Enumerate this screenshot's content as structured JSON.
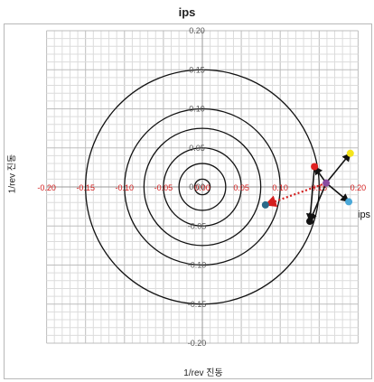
{
  "chart_data": {
    "type": "scatter",
    "title": "ips",
    "xlabel": "1/rev 진동",
    "ylabel": "1/rev 진동",
    "right_label": "ips",
    "xlim": [
      -0.2,
      0.2
    ],
    "ylim": [
      -0.2,
      0.2
    ],
    "grid": true,
    "x_ticks": [
      "-0.20",
      "-0.15",
      "-0.10",
      "-0.05",
      "0.00",
      "0.05",
      "0.10",
      "0.15",
      "0.20"
    ],
    "y_ticks": [
      "0.20",
      "0.15",
      "0.10",
      "0.05",
      "0.00",
      "-0.05",
      "-0.10",
      "-0.15",
      "-0.20"
    ],
    "x_tick_color": "#d42020",
    "circles": [
      0.01,
      0.03,
      0.05,
      0.075,
      0.1,
      0.15
    ],
    "points": [
      {
        "x": 0.144,
        "y": 0.026,
        "color": "#e02020"
      },
      {
        "x": 0.19,
        "y": 0.043,
        "color": "#f4e41c"
      },
      {
        "x": 0.159,
        "y": 0.005,
        "color": "#8a4aa0"
      },
      {
        "x": 0.188,
        "y": -0.019,
        "color": "#4aa8d8"
      },
      {
        "x": 0.081,
        "y": -0.023,
        "color": "#2a6a8a"
      },
      {
        "x": 0.138,
        "y": -0.044,
        "color": "#111111"
      }
    ],
    "arrows": [
      {
        "from": [
          0.159,
          0.005
        ],
        "to": [
          0.19,
          0.043
        ],
        "style": "solid"
      },
      {
        "from": [
          0.159,
          0.005
        ],
        "to": [
          0.144,
          0.026
        ],
        "style": "solid"
      },
      {
        "from": [
          0.159,
          0.005
        ],
        "to": [
          0.188,
          -0.019
        ],
        "style": "solid"
      },
      {
        "from": [
          0.159,
          0.005
        ],
        "to": [
          0.138,
          -0.044
        ],
        "style": "solid"
      },
      {
        "from": [
          0.144,
          0.026
        ],
        "to": [
          0.138,
          -0.044
        ],
        "style": "solid"
      },
      {
        "from": [
          0.159,
          0.005
        ],
        "to": [
          0.081,
          -0.023
        ],
        "style": "dotted-red"
      }
    ]
  }
}
